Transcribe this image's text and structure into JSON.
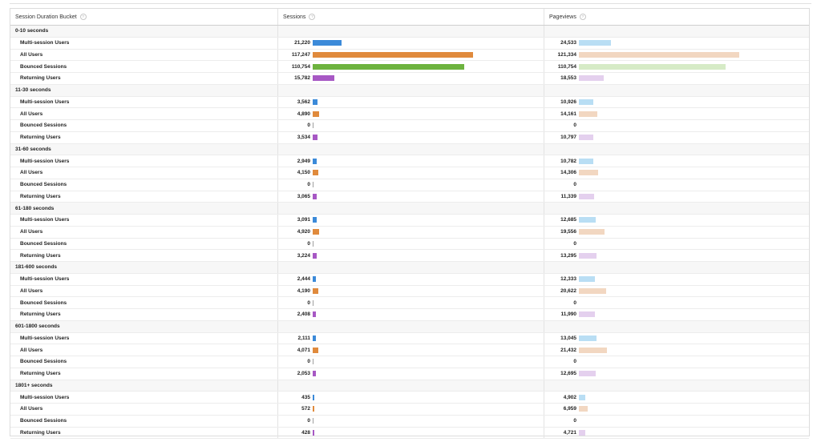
{
  "columns": {
    "bucket": "Session Duration Bucket",
    "sessions": "Sessions",
    "pageviews": "Pageviews"
  },
  "colors": {
    "sessions": {
      "multi": "#3b8ad9",
      "all": "#e08a3c",
      "bounce": "#6db33f",
      "returning": "#a758c4"
    },
    "pageviews": {
      "multi": "#b9def4",
      "all": "#f2d7c1",
      "bounce": "#d6ebc6",
      "returning": "#e4d0ee"
    }
  },
  "groups": [
    {
      "label": "0-10 seconds",
      "rows": [
        {
          "segment": "Multi-session Users",
          "key": "multi",
          "sessions": "21,220",
          "pageviews": "24,533"
        },
        {
          "segment": "All Users",
          "key": "all",
          "sessions": "117,247",
          "pageviews": "121,334"
        },
        {
          "segment": "Bounced Sessions",
          "key": "bounce",
          "sessions": "110,754",
          "pageviews": "110,754"
        },
        {
          "segment": "Returning Users",
          "key": "ret",
          "sessions": "15,782",
          "pageviews": "18,553"
        }
      ]
    },
    {
      "label": "11-30 seconds",
      "rows": [
        {
          "segment": "Multi-session Users",
          "key": "multi",
          "sessions": "3,562",
          "pageviews": "10,926"
        },
        {
          "segment": "All Users",
          "key": "all",
          "sessions": "4,890",
          "pageviews": "14,161"
        },
        {
          "segment": "Bounced Sessions",
          "key": "bounce",
          "sessions": "0",
          "pageviews": "0"
        },
        {
          "segment": "Returning Users",
          "key": "ret",
          "sessions": "3,534",
          "pageviews": "10,797"
        }
      ]
    },
    {
      "label": "31-60 seconds",
      "rows": [
        {
          "segment": "Multi-session Users",
          "key": "multi",
          "sessions": "2,949",
          "pageviews": "10,782"
        },
        {
          "segment": "All Users",
          "key": "all",
          "sessions": "4,150",
          "pageviews": "14,306"
        },
        {
          "segment": "Bounced Sessions",
          "key": "bounce",
          "sessions": "0",
          "pageviews": "0"
        },
        {
          "segment": "Returning Users",
          "key": "ret",
          "sessions": "3,065",
          "pageviews": "11,339"
        }
      ]
    },
    {
      "label": "61-180 seconds",
      "rows": [
        {
          "segment": "Multi-session Users",
          "key": "multi",
          "sessions": "3,091",
          "pageviews": "12,685"
        },
        {
          "segment": "All Users",
          "key": "all",
          "sessions": "4,920",
          "pageviews": "19,556"
        },
        {
          "segment": "Bounced Sessions",
          "key": "bounce",
          "sessions": "0",
          "pageviews": "0"
        },
        {
          "segment": "Returning Users",
          "key": "ret",
          "sessions": "3,224",
          "pageviews": "13,295"
        }
      ]
    },
    {
      "label": "181-600 seconds",
      "rows": [
        {
          "segment": "Multi-session Users",
          "key": "multi",
          "sessions": "2,444",
          "pageviews": "12,333"
        },
        {
          "segment": "All Users",
          "key": "all",
          "sessions": "4,190",
          "pageviews": "20,622"
        },
        {
          "segment": "Bounced Sessions",
          "key": "bounce",
          "sessions": "0",
          "pageviews": "0"
        },
        {
          "segment": "Returning Users",
          "key": "ret",
          "sessions": "2,408",
          "pageviews": "11,990"
        }
      ]
    },
    {
      "label": "601-1800 seconds",
      "rows": [
        {
          "segment": "Multi-session Users",
          "key": "multi",
          "sessions": "2,111",
          "pageviews": "13,045"
        },
        {
          "segment": "All Users",
          "key": "all",
          "sessions": "4,071",
          "pageviews": "21,432"
        },
        {
          "segment": "Bounced Sessions",
          "key": "bounce",
          "sessions": "0",
          "pageviews": "0"
        },
        {
          "segment": "Returning Users",
          "key": "ret",
          "sessions": "2,053",
          "pageviews": "12,695"
        }
      ]
    },
    {
      "label": "1801+ seconds",
      "rows": [
        {
          "segment": "Multi-session Users",
          "key": "multi",
          "sessions": "435",
          "pageviews": "4,902"
        },
        {
          "segment": "All Users",
          "key": "all",
          "sessions": "572",
          "pageviews": "6,959"
        },
        {
          "segment": "Bounced Sessions",
          "key": "bounce",
          "sessions": "0",
          "pageviews": "0"
        },
        {
          "segment": "Returning Users",
          "key": "ret",
          "sessions": "428",
          "pageviews": "4,721"
        }
      ]
    }
  ]
}
